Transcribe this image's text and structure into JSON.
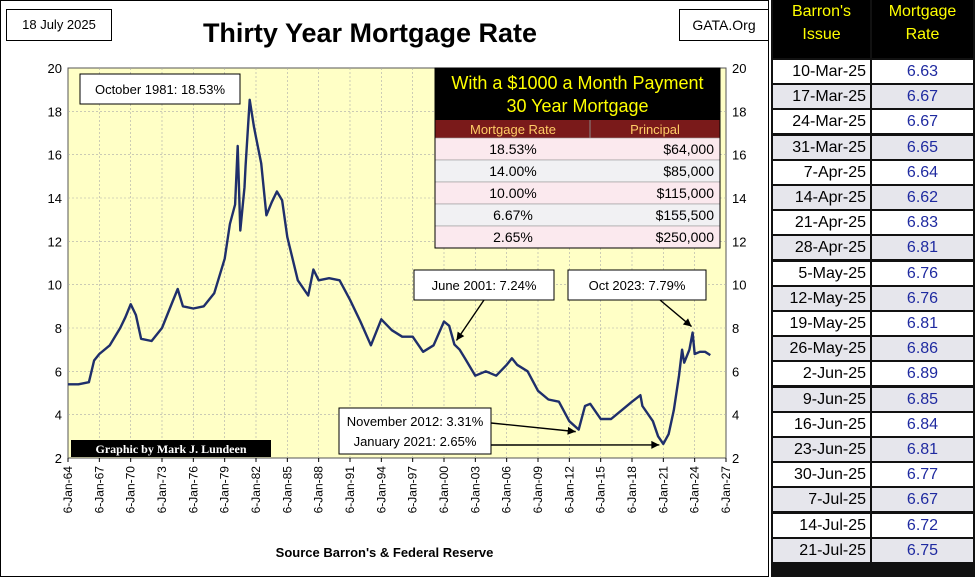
{
  "header": {
    "date_stamp": "18 July 2025",
    "site": "GATA.Org"
  },
  "credit": "Graphic by Mark J. Lundeen",
  "chart_data": {
    "type": "line",
    "title": "Thirty Year Mortgage Rate",
    "source": "Source Barron's & Federal Reserve",
    "xlabel": "",
    "ylabel": "",
    "x_tick_labels": [
      "6-Jan-64",
      "6-Jan-67",
      "6-Jan-70",
      "6-Jan-73",
      "6-Jan-76",
      "6-Jan-79",
      "6-Jan-82",
      "6-Jan-85",
      "6-Jan-88",
      "6-Jan-91",
      "6-Jan-94",
      "6-Jan-97",
      "6-Jan-00",
      "6-Jan-03",
      "6-Jan-06",
      "6-Jan-09",
      "6-Jan-12",
      "6-Jan-15",
      "6-Jan-18",
      "6-Jan-21",
      "6-Jan-24",
      "6-Jan-27"
    ],
    "xlim": [
      1964.0,
      2027.0
    ],
    "ylim": [
      2,
      20
    ],
    "y_ticks": [
      2,
      4,
      6,
      8,
      10,
      12,
      14,
      16,
      18,
      20
    ],
    "grid": true,
    "series": [
      {
        "color": "#1f2f6b",
        "x": [
          1964.0,
          1965.0,
          1966.0,
          1966.5,
          1967.0,
          1968.0,
          1969.0,
          1969.5,
          1970.0,
          1970.5,
          1971.0,
          1972.0,
          1973.0,
          1973.5,
          1974.0,
          1974.5,
          1975.0,
          1976.0,
          1977.0,
          1978.0,
          1979.0,
          1979.5,
          1980.0,
          1980.25,
          1980.5,
          1980.9,
          1981.0,
          1981.4,
          1981.8,
          1982.0,
          1982.5,
          1983.0,
          1983.5,
          1984.0,
          1984.5,
          1985.0,
          1986.0,
          1987.0,
          1987.5,
          1988.0,
          1989.0,
          1990.0,
          1991.0,
          1992.0,
          1993.0,
          1994.0,
          1995.0,
          1996.0,
          1997.0,
          1998.0,
          1999.0,
          2000.0,
          2000.5,
          2001.0,
          2001.5,
          2002.0,
          2003.0,
          2004.0,
          2005.0,
          2006.0,
          2006.5,
          2007.0,
          2008.0,
          2009.0,
          2010.0,
          2011.0,
          2012.0,
          2012.9,
          2013.5,
          2014.0,
          2015.0,
          2016.0,
          2016.5,
          2017.0,
          2018.0,
          2018.8,
          2019.0,
          2020.0,
          2020.5,
          2021.0,
          2021.5,
          2022.0,
          2022.5,
          2022.8,
          2023.0,
          2023.5,
          2023.8,
          2024.0,
          2024.5,
          2025.0,
          2025.5
        ],
        "y": [
          5.4,
          5.4,
          5.5,
          6.5,
          6.8,
          7.2,
          8.0,
          8.5,
          9.1,
          8.6,
          7.5,
          7.4,
          8.0,
          8.6,
          9.2,
          9.8,
          9.0,
          8.9,
          9.0,
          9.6,
          11.2,
          12.8,
          13.7,
          16.4,
          12.5,
          14.5,
          15.5,
          18.53,
          17.3,
          16.8,
          15.6,
          13.2,
          13.8,
          14.3,
          13.9,
          12.2,
          10.2,
          9.5,
          10.7,
          10.2,
          10.3,
          10.2,
          9.3,
          8.3,
          7.2,
          8.4,
          7.9,
          7.6,
          7.6,
          6.9,
          7.2,
          8.3,
          8.1,
          7.24,
          7.0,
          6.6,
          5.8,
          6.0,
          5.8,
          6.3,
          6.6,
          6.3,
          6.0,
          5.1,
          4.7,
          4.6,
          3.7,
          3.31,
          4.4,
          4.5,
          3.8,
          3.8,
          4.0,
          4.2,
          4.6,
          4.9,
          4.4,
          3.7,
          3.0,
          2.65,
          3.1,
          4.2,
          5.8,
          7.0,
          6.4,
          7.0,
          7.79,
          6.8,
          6.9,
          6.9,
          6.75
        ]
      }
    ],
    "annotations": [
      {
        "text": "October 1981:  18.53%"
      },
      {
        "text": "June 2001:  7.24%"
      },
      {
        "text": "Oct 2023:  7.79%"
      },
      {
        "text": "November 2012:  3.31%"
      },
      {
        "text": "January 2021:  2.65%"
      }
    ],
    "inset_table": {
      "title_line1": "With a $1000 a Month Payment",
      "title_line2": "30 Year Mortgage",
      "col1": "Mortgage Rate",
      "col2": "Principal",
      "rows": [
        [
          "18.53%",
          "$64,000"
        ],
        [
          "14.00%",
          "$85,000"
        ],
        [
          "10.00%",
          "$115,000"
        ],
        [
          "6.67%",
          "$155,500"
        ],
        [
          "2.65%",
          "$250,000"
        ]
      ]
    }
  },
  "rates_table": {
    "col1_line1": "Barron's",
    "col1_line2": "Issue",
    "col2_line1": "Mortgage",
    "col2_line2": "Rate",
    "rows": [
      [
        "10-Mar-25",
        "6.63"
      ],
      [
        "17-Mar-25",
        "6.67"
      ],
      [
        "24-Mar-25",
        "6.67"
      ],
      [
        "31-Mar-25",
        "6.65"
      ],
      [
        "7-Apr-25",
        "6.64"
      ],
      [
        "14-Apr-25",
        "6.62"
      ],
      [
        "21-Apr-25",
        "6.83"
      ],
      [
        "28-Apr-25",
        "6.81"
      ],
      [
        "5-May-25",
        "6.76"
      ],
      [
        "12-May-25",
        "6.76"
      ],
      [
        "19-May-25",
        "6.81"
      ],
      [
        "26-May-25",
        "6.86"
      ],
      [
        "2-Jun-25",
        "6.89"
      ],
      [
        "9-Jun-25",
        "6.85"
      ],
      [
        "16-Jun-25",
        "6.84"
      ],
      [
        "23-Jun-25",
        "6.81"
      ],
      [
        "30-Jun-25",
        "6.77"
      ],
      [
        "7-Jul-25",
        "6.67"
      ],
      [
        "14-Jul-25",
        "6.72"
      ],
      [
        "21-Jul-25",
        "6.75"
      ]
    ]
  }
}
